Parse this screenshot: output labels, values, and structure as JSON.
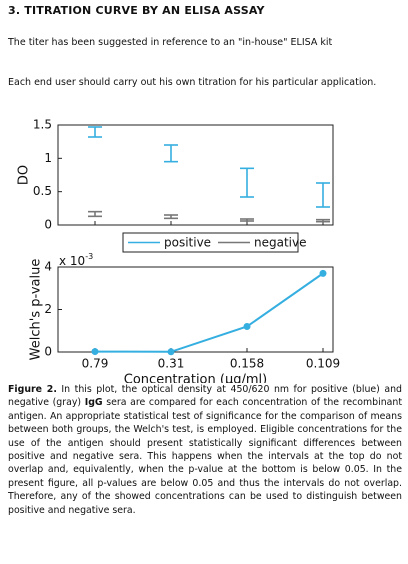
{
  "heading": "3. TITRATION CURVE BY AN ELISA ASSAY",
  "paragraphs": [
    "The titer has been suggested in reference to an \"in-house\" ELISA kit",
    "Each end user should carry out his own titration for his particular application."
  ],
  "chart_data": [
    {
      "type": "errorbar",
      "ylabel": "DO",
      "categories": [
        "0.79",
        "0.31",
        "0.158",
        "0.109"
      ],
      "ylim": [
        0,
        1.5
      ],
      "yticks": [
        0,
        0.5,
        1,
        1.5
      ],
      "series": [
        {
          "name": "positive",
          "color": "#35aee0",
          "low": [
            1.32,
            0.95,
            0.42,
            0.27
          ],
          "high": [
            1.47,
            1.2,
            0.85,
            0.63
          ]
        },
        {
          "name": "negative",
          "color": "#777777",
          "low": [
            0.13,
            0.1,
            0.06,
            0.05
          ],
          "high": [
            0.2,
            0.15,
            0.09,
            0.08
          ]
        }
      ]
    },
    {
      "type": "line",
      "ylabel": "Welch's p-value",
      "xlabel": "Concentration (µg/ml)",
      "y_multiplier": "x 10",
      "y_multiplier_exponent": "-3",
      "categories": [
        "0.79",
        "0.31",
        "0.158",
        "0.109"
      ],
      "ylim": [
        0,
        4
      ],
      "yticks": [
        0,
        2,
        4
      ],
      "color": "#35aee0",
      "values": [
        0.02,
        0.01,
        1.2,
        3.7
      ]
    }
  ],
  "caption": [
    "Figure 2.",
    " In this plot, the optical density at 450/620 nm for positive (blue) and negative (gray) ",
    "IgG",
    " sera are compared for each concentration of the recombinant antigen. An appropriate statistical test of significance for the comparison of means between both groups, the Welch's test, is employed. Eligible concentrations for the use of the antigen should present statistically significant differences between positive and negative sera. This happens when the intervals at the top do not overlap and, equivalently, when the p-value at the bottom is below 0.05. In the present figure, all p-values are below 0.05 and thus the intervals do not overlap. Therefore, any of the showed concentrations can be used to distinguish between positive and negative sera."
  ]
}
